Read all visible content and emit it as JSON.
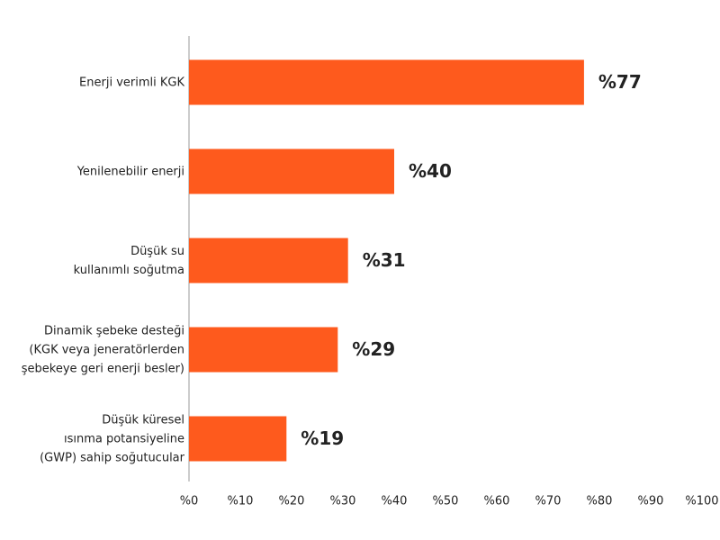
{
  "chart_data": {
    "type": "barh",
    "categories": [
      "Enerji verimli KGK",
      "Yenilenebilir enerji",
      "Düşük su\nkullanımlı soğutma",
      "Dinamik şebeke desteği\n(KGK veya jeneratörlerden\nşebekeye geri enerji besler)",
      "Düşük küresel\nısınma potansiyeline\n(GWP) sahip soğutucular"
    ],
    "values": [
      77,
      40,
      31,
      29,
      19
    ],
    "value_labels": [
      "%77",
      "%40",
      "%31",
      "%29",
      "%19"
    ],
    "color": "#fe5a1d",
    "xlim": [
      0,
      100
    ],
    "xticks": [
      {
        "value": 0,
        "label": "%0"
      },
      {
        "value": 10,
        "label": "%10"
      },
      {
        "value": 20,
        "label": "%20"
      },
      {
        "value": 30,
        "label": "%30"
      },
      {
        "value": 40,
        "label": "%40"
      },
      {
        "value": 50,
        "label": "%50"
      },
      {
        "value": 60,
        "label": "%60"
      },
      {
        "value": 70,
        "label": "%70"
      },
      {
        "value": 80,
        "label": "%80"
      },
      {
        "value": 90,
        "label": "%90"
      },
      {
        "value": 100,
        "label": "%100"
      }
    ]
  }
}
